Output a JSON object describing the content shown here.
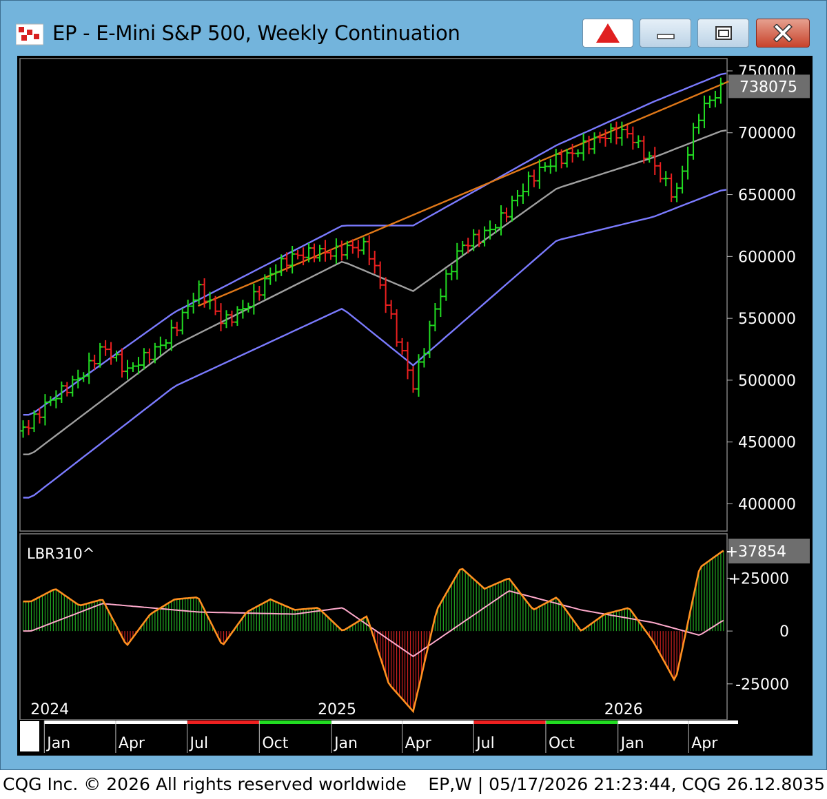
{
  "window": {
    "title": "EP - E-Mini S&P 500, Weekly Continuation",
    "icon": "cqg-chart-icon",
    "buttons": {
      "alert": "alert-triangle-icon",
      "minimize": "minimize-icon",
      "maximize": "maximize-icon",
      "close": "close-icon"
    }
  },
  "footer": {
    "left": "CQG Inc. © 2026 All rights reserved worldwide",
    "right": "EP,W | 05/17/2026 21:23:44, CQG 26.12.8035"
  },
  "chart_data": [
    {
      "type": "ohlc-bar",
      "y_ticks": [
        "750000",
        "700000",
        "650000",
        "600000",
        "550000",
        "500000",
        "450000",
        "400000"
      ],
      "ylim": [
        378000,
        760000
      ],
      "last_price_label": "738075",
      "colors": {
        "up": "#22dd22",
        "down": "#ee2020",
        "bands": "#7b7bff",
        "middle": "#a0a0a0",
        "trendline": "#e07818",
        "background": "#000000"
      },
      "trendline": {
        "x_start": "2024-07",
        "y_start": 560000,
        "x_end": "2026-05",
        "y_end": 741000
      },
      "price_path": [
        [
          "2023-12",
          462000
        ],
        [
          "2024-03",
          528000
        ],
        [
          "2024-04",
          502000
        ],
        [
          "2024-06",
          545000
        ],
        [
          "2024-07",
          570000
        ],
        [
          "2024-08",
          545000
        ],
        [
          "2024-10",
          585000
        ],
        [
          "2024-12",
          607000
        ],
        [
          "2025-01",
          608000
        ],
        [
          "2025-02",
          603000
        ],
        [
          "2025-03",
          555000
        ],
        [
          "2025-04",
          500000
        ],
        [
          "2025-05",
          560000
        ],
        [
          "2025-06",
          605000
        ],
        [
          "2025-08",
          640000
        ],
        [
          "2025-10",
          680000
        ],
        [
          "2025-11",
          692000
        ],
        [
          "2026-01",
          697000
        ],
        [
          "2026-02",
          680000
        ],
        [
          "2026-03",
          648000
        ],
        [
          "2026-04",
          712000
        ],
        [
          "2026-05",
          740000
        ]
      ],
      "bands": {
        "upper": [
          [
            "2023-12",
            472000
          ],
          [
            "2024-06",
            555000
          ],
          [
            "2025-01",
            625000
          ],
          [
            "2025-04",
            625000
          ],
          [
            "2025-10",
            690000
          ],
          [
            "2026-02",
            725000
          ],
          [
            "2026-05",
            748000
          ]
        ],
        "middle": [
          [
            "2023-12",
            440000
          ],
          [
            "2024-06",
            528000
          ],
          [
            "2025-01",
            596000
          ],
          [
            "2025-04",
            572000
          ],
          [
            "2025-10",
            655000
          ],
          [
            "2026-02",
            680000
          ],
          [
            "2026-05",
            702000
          ]
        ],
        "lower": [
          [
            "2023-12",
            405000
          ],
          [
            "2024-06",
            495000
          ],
          [
            "2025-01",
            558000
          ],
          [
            "2025-04",
            512000
          ],
          [
            "2025-10",
            613000
          ],
          [
            "2026-02",
            632000
          ],
          [
            "2026-05",
            654000
          ]
        ]
      }
    },
    {
      "type": "histogram-oscillator",
      "title": "LBR310^",
      "y_ticks": [
        "+25000",
        "0",
        "-25000"
      ],
      "ylim": [
        -42000,
        46000
      ],
      "last_value_label": "+37854",
      "colors": {
        "positive": "#22aa22",
        "negative": "#cc2020",
        "line": "#ff9020",
        "signal": "#ffaacc"
      },
      "osc_path": [
        [
          "2023-12",
          14000
        ],
        [
          "2024-01",
          20000
        ],
        [
          "2024-02",
          12000
        ],
        [
          "2024-03",
          15000
        ],
        [
          "2024-04",
          -7000
        ],
        [
          "2024-05",
          8000
        ],
        [
          "2024-06",
          15000
        ],
        [
          "2024-07",
          16000
        ],
        [
          "2024-08",
          -7000
        ],
        [
          "2024-09",
          9000
        ],
        [
          "2024-10",
          15000
        ],
        [
          "2024-11",
          10000
        ],
        [
          "2024-12",
          11000
        ],
        [
          "2025-01",
          0
        ],
        [
          "2025-02",
          7000
        ],
        [
          "2025-03",
          -25000
        ],
        [
          "2025-04",
          -38000
        ],
        [
          "2025-05",
          10000
        ],
        [
          "2025-06",
          30000
        ],
        [
          "2025-07",
          20000
        ],
        [
          "2025-08",
          25000
        ],
        [
          "2025-09",
          10000
        ],
        [
          "2025-10",
          16000
        ],
        [
          "2025-11",
          0
        ],
        [
          "2025-12",
          8000
        ],
        [
          "2026-01",
          11000
        ],
        [
          "2026-02",
          -5000
        ],
        [
          "2026-03",
          -24000
        ],
        [
          "2026-04",
          30000
        ],
        [
          "2026-05",
          38000
        ]
      ],
      "signal_path": [
        [
          "2023-12",
          0
        ],
        [
          "2024-03",
          13000
        ],
        [
          "2024-07",
          9000
        ],
        [
          "2024-11",
          8000
        ],
        [
          "2025-01",
          11000
        ],
        [
          "2025-04",
          -12000
        ],
        [
          "2025-08",
          19000
        ],
        [
          "2025-11",
          10000
        ],
        [
          "2026-02",
          4000
        ],
        [
          "2026-04",
          -2000
        ],
        [
          "2026-05",
          5000
        ]
      ]
    }
  ],
  "x_axis": {
    "start": "2023-12-01",
    "end": "2026-05-20",
    "year_labels": [
      [
        "2024",
        "2024-01-01"
      ],
      [
        "2025",
        "2025-01-01"
      ],
      [
        "2026",
        "2026-01-01"
      ]
    ],
    "month_labels": [
      [
        "Jan",
        "2024-01-01"
      ],
      [
        "Apr",
        "2024-04-01"
      ],
      [
        "Jul",
        "2024-07-01"
      ],
      [
        "Oct",
        "2024-10-01"
      ],
      [
        "Jan",
        "2025-01-01"
      ],
      [
        "Apr",
        "2025-04-01"
      ],
      [
        "Jul",
        "2025-07-01"
      ],
      [
        "Oct",
        "2025-10-01"
      ],
      [
        "Jan",
        "2026-01-01"
      ],
      [
        "Apr",
        "2026-04-01"
      ]
    ]
  }
}
